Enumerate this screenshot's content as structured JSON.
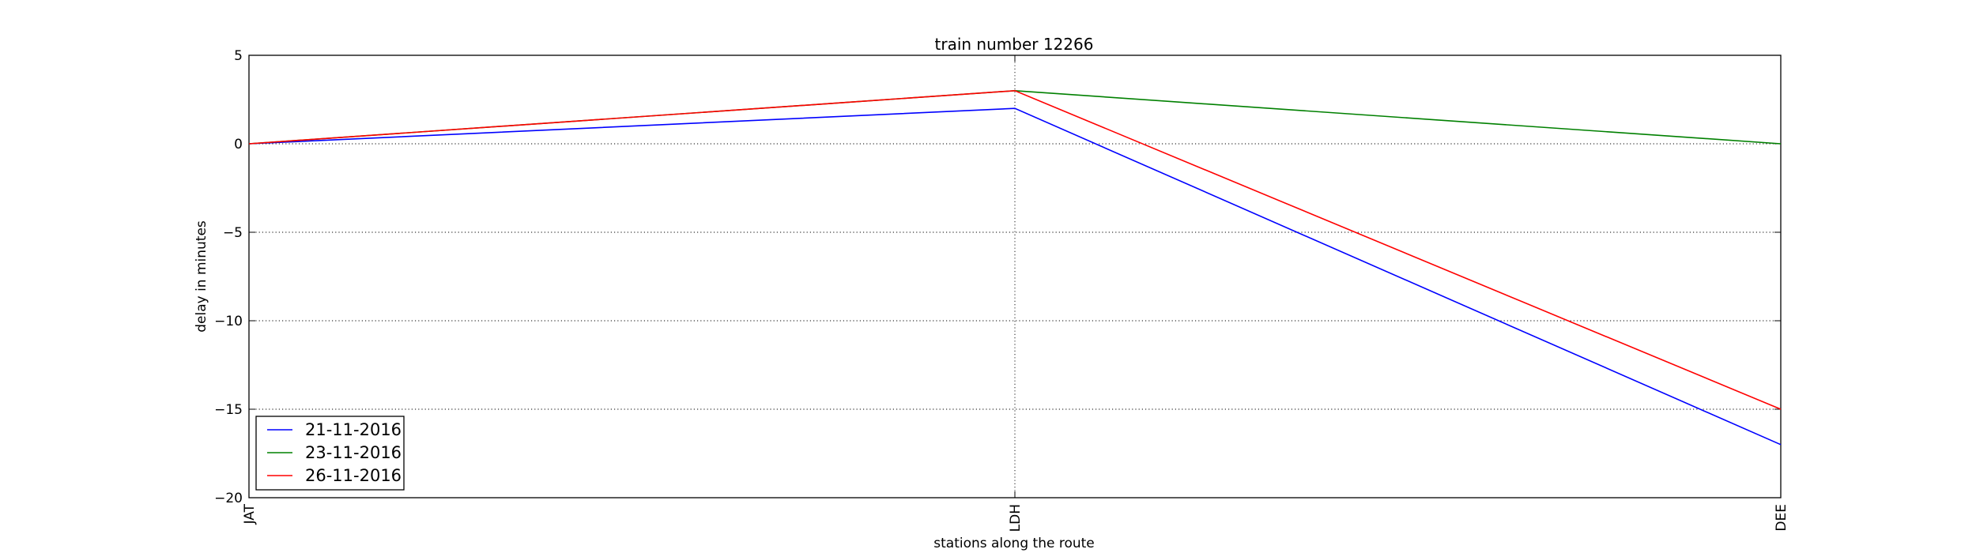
{
  "chart_data": {
    "type": "line",
    "title": "train number 12266",
    "xlabel": "stations along the route",
    "ylabel": "delay in minutes",
    "categories": [
      "JAT",
      "LDH",
      "DEE"
    ],
    "ylim": [
      -20,
      5
    ],
    "yticks": [
      5,
      0,
      -5,
      -10,
      -15,
      -20
    ],
    "ytick_labels": [
      "5",
      "0",
      "−5",
      "−10",
      "−15",
      "−20"
    ],
    "grid": true,
    "legend_position": "lower-left",
    "series": [
      {
        "name": "21-11-2016",
        "color": "#0000ff",
        "values": [
          0,
          2,
          -17
        ]
      },
      {
        "name": "23-11-2016",
        "color": "#008000",
        "values": [
          0,
          3,
          0
        ]
      },
      {
        "name": "26-11-2016",
        "color": "#ff0000",
        "values": [
          0,
          3,
          -15
        ]
      }
    ]
  }
}
